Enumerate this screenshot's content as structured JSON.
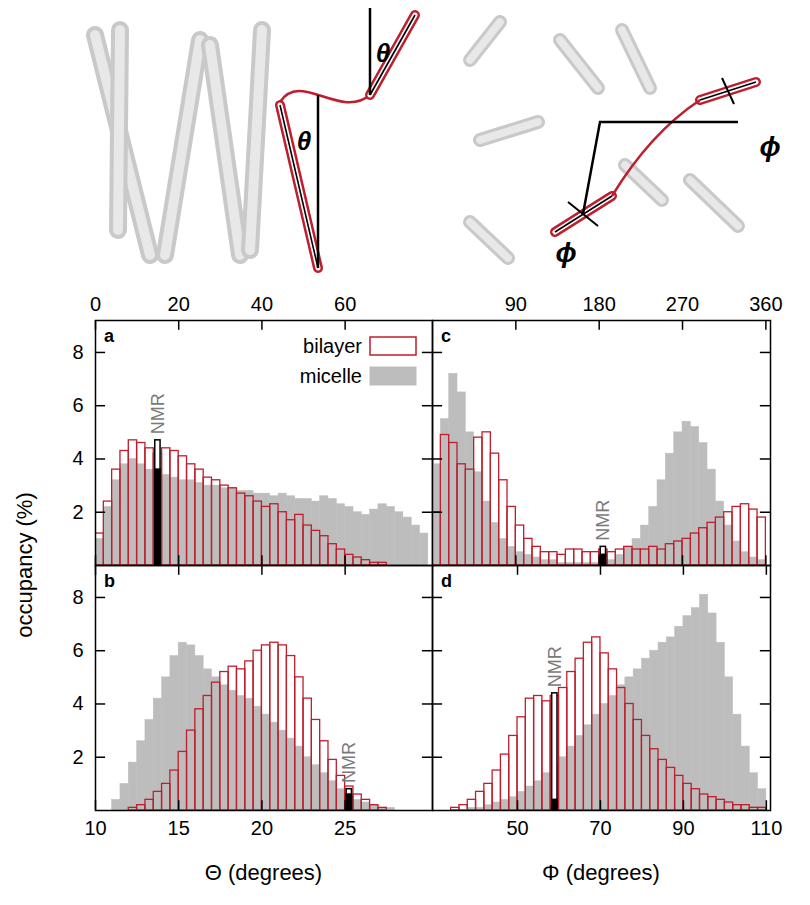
{
  "chart_data": [
    {
      "type": "histogram",
      "panel": "a",
      "legend": "top-right",
      "tick_labels": true,
      "annotation": "NMR",
      "xlim": [
        0,
        81
      ],
      "xticks": [
        0,
        20,
        40,
        60
      ],
      "ylim": [
        0,
        9.2
      ],
      "yticks": [
        2,
        4,
        6,
        8
      ],
      "bins": [
        0,
        2,
        4,
        6,
        8,
        10,
        12,
        14,
        16,
        18,
        20,
        22,
        24,
        26,
        28,
        30,
        32,
        34,
        36,
        38,
        40,
        42,
        44,
        46,
        48,
        50,
        52,
        54,
        56,
        58,
        60,
        62,
        64,
        66,
        68,
        70,
        72,
        74,
        76,
        78,
        80
      ],
      "series": [
        {
          "name": "bilayer",
          "type": "outline",
          "color": "#be1e2d",
          "values": [
            1.2,
            2.4,
            3.6,
            4.3,
            4.7,
            4.6,
            4.4,
            4.2,
            4.4,
            4.3,
            4.1,
            3.8,
            3.6,
            3.3,
            3.2,
            3.0,
            2.9,
            2.7,
            2.6,
            2.4,
            2.2,
            2.3,
            2.0,
            1.7,
            1.9,
            1.5,
            1.3,
            1.1,
            0.8,
            0.6,
            0.4,
            0.3,
            0.2,
            0.1,
            0.1,
            0,
            0,
            0,
            0,
            0
          ]
        },
        {
          "name": "micelle",
          "type": "filled",
          "color": "#bdbdbd",
          "values": [
            1.0,
            2.2,
            3.2,
            3.8,
            4.0,
            3.8,
            3.6,
            3.5,
            3.4,
            3.3,
            3.2,
            3.2,
            3.1,
            3.0,
            3.0,
            2.9,
            2.9,
            2.8,
            2.8,
            2.7,
            2.7,
            2.6,
            2.7,
            2.6,
            2.5,
            2.5,
            2.4,
            2.6,
            2.5,
            2.3,
            2.2,
            2.0,
            1.9,
            2.1,
            2.3,
            2.2,
            2.0,
            1.8,
            1.5,
            1.2
          ]
        }
      ],
      "nmr": {
        "bins": [
          14,
          16
        ],
        "bilayer": 4.7,
        "micelle": 3.6
      }
    },
    {
      "type": "histogram",
      "panel": "b",
      "tick_labels": true,
      "annotation": "NMR",
      "xlabel": "Θ (degrees)",
      "xlim": [
        10,
        30.25
      ],
      "xticks": [
        10,
        15,
        20,
        25
      ],
      "ylim": [
        0,
        9.2
      ],
      "yticks": [
        2,
        4,
        6,
        8
      ],
      "bins": [
        10,
        10.5,
        11,
        11.5,
        12,
        12.5,
        13,
        13.5,
        14,
        14.5,
        15,
        15.5,
        16,
        16.5,
        17,
        17.5,
        18,
        18.5,
        19,
        19.5,
        20,
        20.5,
        21,
        21.5,
        22,
        22.5,
        23,
        23.5,
        24,
        24.5,
        25,
        25.5,
        26,
        26.5,
        27,
        27.5,
        28,
        28.5,
        29,
        29.5,
        30
      ],
      "series": [
        {
          "name": "bilayer",
          "type": "outline",
          "color": "#be1e2d",
          "values": [
            0,
            0,
            0,
            0,
            0.1,
            0.2,
            0.4,
            0.7,
            1.0,
            1.5,
            2.2,
            3.0,
            3.8,
            4.3,
            4.8,
            5.2,
            5.4,
            5.3,
            5.6,
            6.0,
            6.2,
            6.3,
            6.2,
            5.8,
            5.0,
            4.2,
            3.4,
            2.6,
            1.9,
            1.3,
            0.9,
            0.6,
            0.4,
            0.2,
            0.1,
            0,
            0,
            0,
            0,
            0
          ]
        },
        {
          "name": "micelle",
          "type": "filled",
          "color": "#bdbdbd",
          "values": [
            0,
            0,
            0.4,
            1.0,
            1.8,
            2.6,
            3.4,
            4.2,
            5.0,
            5.8,
            6.3,
            6.2,
            5.8,
            5.3,
            5.0,
            4.7,
            4.5,
            4.3,
            4.2,
            3.9,
            3.6,
            3.3,
            3.0,
            2.7,
            2.4,
            2.0,
            1.7,
            1.4,
            1.1,
            0.8,
            0.5,
            0.4,
            0.3,
            0.2,
            0.1,
            0.1,
            0,
            0,
            0,
            0
          ]
        }
      ],
      "nmr": {
        "bins": [
          25,
          25.5
        ],
        "bilayer": 0.8,
        "micelle": 0.6
      }
    },
    {
      "type": "histogram",
      "panel": "c",
      "tick_labels": "x",
      "annotation": "NMR",
      "xlim": [
        0,
        365
      ],
      "xticks": [
        90,
        180,
        270,
        360
      ],
      "ylim": [
        0,
        9.2
      ],
      "yticks": [
        2,
        4,
        6,
        8
      ],
      "bins": [
        0,
        9,
        18,
        27,
        36,
        45,
        54,
        63,
        72,
        81,
        90,
        99,
        108,
        117,
        126,
        135,
        144,
        153,
        162,
        171,
        180,
        189,
        198,
        207,
        216,
        225,
        234,
        243,
        252,
        261,
        270,
        279,
        288,
        297,
        306,
        315,
        324,
        333,
        342,
        351,
        360
      ],
      "series": [
        {
          "name": "bilayer",
          "type": "outline",
          "color": "#be1e2d",
          "values": [
            2.0,
            4.9,
            4.6,
            3.8,
            3.6,
            4.8,
            5.0,
            4.2,
            3.2,
            2.2,
            1.5,
            1.0,
            0.7,
            0.5,
            0.5,
            0.4,
            0.6,
            0.6,
            0.5,
            0.5,
            0.6,
            0.5,
            0.6,
            0.7,
            0.6,
            0.6,
            0.7,
            0.6,
            0.8,
            0.9,
            1.0,
            1.2,
            1.4,
            1.6,
            1.8,
            2.0,
            2.2,
            2.3,
            2.1,
            1.8
          ]
        },
        {
          "name": "micelle",
          "type": "filled",
          "color": "#bdbdbd",
          "values": [
            3.8,
            5.5,
            7.2,
            6.5,
            5.0,
            3.5,
            2.4,
            1.6,
            1.0,
            0.7,
            0.5,
            0.4,
            0.3,
            0.2,
            0.2,
            0.1,
            0.1,
            0.1,
            0.1,
            0.1,
            0.1,
            0.2,
            0.4,
            0.7,
            1.0,
            1.5,
            2.2,
            3.2,
            4.2,
            5.0,
            5.4,
            5.2,
            4.6,
            3.6,
            2.4,
            1.5,
            0.9,
            0.5,
            0.3,
            0.2
          ]
        }
      ],
      "nmr": {
        "bins": [
          180,
          189
        ],
        "bilayer": 0.7,
        "micelle": 0.4
      }
    },
    {
      "type": "histogram",
      "panel": "d",
      "tick_labels": "x",
      "annotation": "NMR",
      "xlabel": "Φ (degrees)",
      "xlim": [
        29.5,
        111
      ],
      "xticks": [
        50,
        70,
        90,
        110
      ],
      "ylim": [
        0,
        9.2
      ],
      "yticks": [
        2,
        4,
        6,
        8
      ],
      "bins": [
        30,
        32,
        34,
        36,
        38,
        40,
        42,
        44,
        46,
        48,
        50,
        52,
        54,
        56,
        58,
        60,
        62,
        64,
        66,
        68,
        70,
        72,
        74,
        76,
        78,
        80,
        82,
        84,
        86,
        88,
        90,
        92,
        94,
        96,
        98,
        100,
        102,
        104,
        106,
        108,
        110
      ],
      "series": [
        {
          "name": "bilayer",
          "type": "outline",
          "color": "#be1e2d",
          "values": [
            0,
            0,
            0.1,
            0.2,
            0.4,
            0.7,
            1.0,
            1.5,
            2.1,
            2.8,
            3.5,
            4.2,
            4.3,
            4.1,
            4.3,
            4.6,
            5.2,
            5.7,
            6.3,
            6.5,
            5.9,
            5.3,
            4.6,
            4.0,
            3.4,
            2.8,
            2.3,
            1.9,
            1.6,
            1.3,
            1.0,
            0.8,
            0.6,
            0.5,
            0.4,
            0.3,
            0.2,
            0.2,
            0.1,
            0.1
          ]
        },
        {
          "name": "micelle",
          "type": "filled",
          "color": "#bdbdbd",
          "values": [
            0,
            0,
            0,
            0,
            0.1,
            0.1,
            0.2,
            0.3,
            0.4,
            0.5,
            0.7,
            0.9,
            1.1,
            1.4,
            1.7,
            2.0,
            2.4,
            2.8,
            3.2,
            3.6,
            4.0,
            4.3,
            4.7,
            5.0,
            5.3,
            5.7,
            6.0,
            6.3,
            6.5,
            6.9,
            7.3,
            7.6,
            8.1,
            7.4,
            6.3,
            5.0,
            3.6,
            2.4,
            1.4,
            0.8
          ]
        }
      ],
      "nmr": {
        "bins": [
          58,
          60
        ],
        "bilayer": 4.4,
        "micelle": 0.4
      }
    }
  ],
  "ylabel": "occupancy (%)",
  "illustration": {
    "theta": "θ",
    "phi": "ϕ"
  }
}
